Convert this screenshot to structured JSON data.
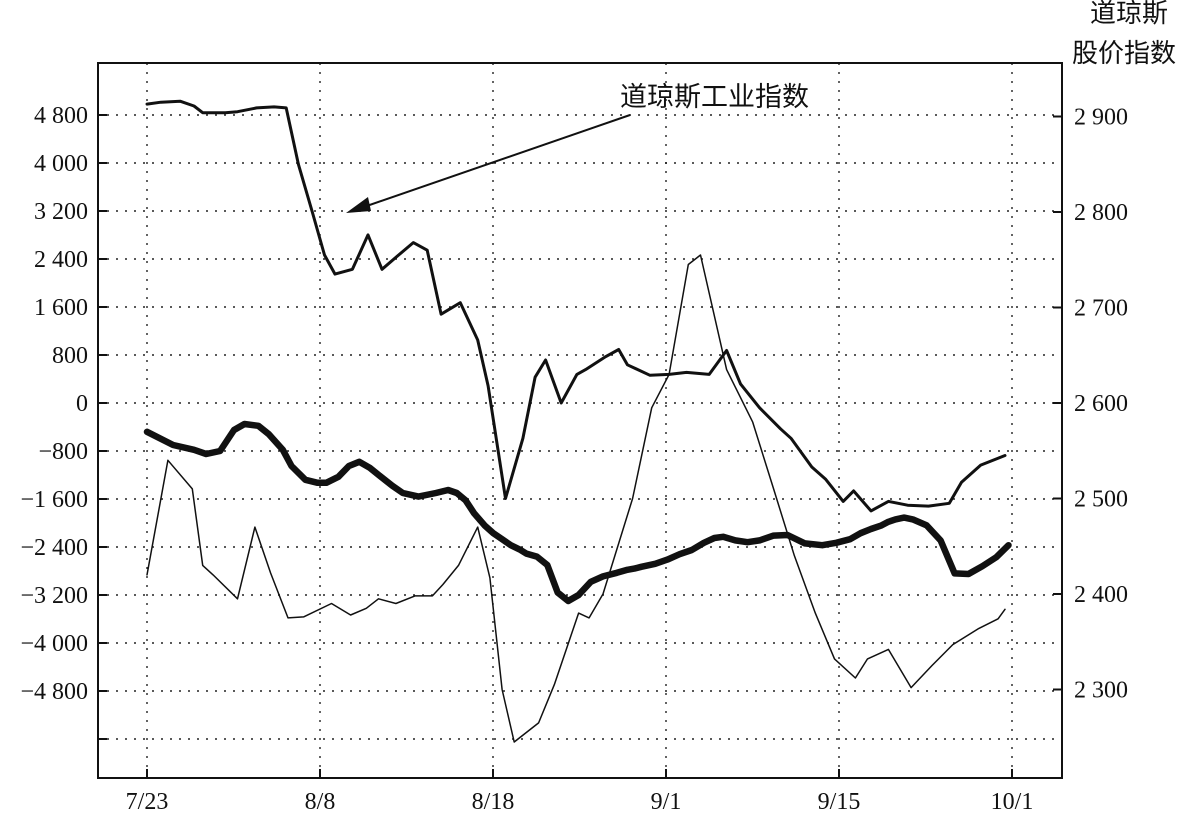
{
  "chart_data": {
    "type": "line",
    "right_axis_title_line1": "道琼斯",
    "right_axis_title_line2": "股价指数",
    "annotation": "道琼斯工业指数",
    "x_tick_labels": [
      "7/23",
      "8/8",
      "8/18",
      "9/1",
      "9/15",
      "10/1"
    ],
    "left_axis": {
      "ticks": [
        4800,
        4000,
        3200,
        2400,
        1600,
        800,
        0,
        -800,
        -1600,
        -2400,
        -3200,
        -4000,
        -4800
      ],
      "tick_labels": [
        "4 800",
        "4 000",
        "3 200",
        "2 400",
        "1 600",
        "800",
        "0",
        "−800",
        "−1 600",
        "−2 400",
        "−3 200",
        "−4 000",
        "−4 800"
      ]
    },
    "right_axis": {
      "ticks": [
        2900,
        2800,
        2700,
        2600,
        2500,
        2400,
        2300
      ],
      "tick_labels": [
        "2 900",
        "2 800",
        "2 700",
        "2 600",
        "2 500",
        "2 400",
        "2 300"
      ]
    },
    "x_range": [
      0,
      49.7
    ],
    "series": [
      {
        "axis": "right",
        "style": "medium",
        "x": [
          0,
          0.8,
          1.9,
          2.7,
          3.2,
          4.5,
          5.2,
          6.3,
          7.3,
          8.0,
          8.7,
          9.5,
          10.2,
          10.8,
          11.8,
          12.7,
          13.5,
          14.4,
          15.3,
          16.1,
          16.9,
          18.0,
          19.0,
          19.6,
          20.6,
          21.6,
          22.3,
          22.9,
          23.8,
          24.7,
          25.2,
          26.3,
          27.1,
          27.6,
          28.9,
          30.0,
          31.0,
          32.3,
          33.3,
          34.1,
          35.2,
          36.4,
          37.0,
          38.2,
          39.0,
          40.0,
          40.6,
          41.6,
          42.6,
          43.7,
          44.9,
          46.1,
          46.8,
          47.9,
          49.3
        ],
        "y": [
          2913,
          2915,
          2916,
          2911,
          2904,
          2904,
          2905,
          2909,
          2910,
          2909,
          2850,
          2800,
          2755,
          2735,
          2740,
          2776,
          2740,
          2754,
          2768,
          2760,
          2693,
          2705,
          2666,
          2618,
          2500,
          2563,
          2627,
          2645,
          2600,
          2630,
          2635,
          2648,
          2656,
          2640,
          2629,
          2630,
          2632,
          2630,
          2655,
          2620,
          2595,
          2573,
          2563,
          2533,
          2520,
          2497,
          2508,
          2487,
          2497,
          2493,
          2492,
          2495,
          2517,
          2535,
          2545
        ]
      },
      {
        "axis": "right",
        "style": "thin",
        "x": [
          0,
          1.2,
          2.6,
          3.2,
          3.8,
          5.2,
          6.2,
          7.1,
          8.1,
          9.0,
          10.6,
          11.7,
          12.6,
          13.3,
          14.3,
          15.4,
          16.4,
          17.0,
          17.9,
          19.0,
          19.7,
          20.4,
          21.1,
          22.5,
          23.4,
          24.8,
          25.4,
          26.2,
          27.9,
          29.0,
          30.0,
          31.1,
          31.8,
          33.3,
          34.8,
          36.0,
          37.2,
          38.4,
          39.5,
          40.7,
          41.4,
          42.6,
          43.9,
          45.1,
          46.3,
          47.8,
          48.9,
          49.3
        ],
        "y": [
          2420,
          2540,
          2510,
          2430,
          2420,
          2395,
          2470,
          2422,
          2375,
          2376,
          2390,
          2378,
          2385,
          2395,
          2390,
          2398,
          2398,
          2410,
          2430,
          2470,
          2417,
          2300,
          2245,
          2265,
          2305,
          2380,
          2375,
          2400,
          2500,
          2595,
          2630,
          2745,
          2755,
          2635,
          2580,
          2510,
          2440,
          2380,
          2332,
          2312,
          2332,
          2342,
          2302,
          2325,
          2347,
          2364,
          2374,
          2384
        ]
      },
      {
        "axis": "left",
        "style": "bold",
        "x": [
          0,
          1.5,
          2.7,
          3.4,
          4.2,
          5.0,
          5.6,
          6.4,
          7.0,
          7.8,
          8.3,
          9.1,
          9.8,
          10.3,
          11.0,
          11.6,
          12.2,
          12.8,
          13.4,
          14.1,
          14.7,
          15.6,
          16.6,
          17.3,
          17.8,
          18.3,
          18.8,
          19.4,
          19.9,
          20.4,
          20.9,
          21.4,
          21.8,
          22.4,
          23.0,
          23.6,
          24.2,
          24.8,
          25.5,
          26.2,
          27.0,
          27.6,
          28.0,
          28.4,
          29.2,
          29.9,
          30.6,
          31.3,
          32.0,
          32.6,
          33.1,
          33.8,
          34.5,
          35.2,
          36.0,
          36.8,
          37.8,
          38.8,
          39.6,
          40.4,
          41.0,
          41.6,
          42.2,
          42.6,
          43.0,
          43.5,
          44.0,
          44.8,
          45.6,
          46.4,
          47.2,
          48.0,
          48.8,
          49.5
        ],
        "y": [
          -480,
          -700,
          -780,
          -850,
          -800,
          -450,
          -350,
          -380,
          -520,
          -780,
          -1050,
          -1280,
          -1330,
          -1330,
          -1230,
          -1050,
          -980,
          -1080,
          -1220,
          -1380,
          -1500,
          -1560,
          -1500,
          -1450,
          -1500,
          -1620,
          -1840,
          -2040,
          -2170,
          -2270,
          -2370,
          -2440,
          -2510,
          -2560,
          -2700,
          -3160,
          -3300,
          -3200,
          -2980,
          -2890,
          -2830,
          -2780,
          -2760,
          -2730,
          -2680,
          -2610,
          -2520,
          -2450,
          -2330,
          -2250,
          -2230,
          -2290,
          -2320,
          -2290,
          -2210,
          -2200,
          -2340,
          -2370,
          -2330,
          -2270,
          -2170,
          -2100,
          -2040,
          -1980,
          -1940,
          -1910,
          -1940,
          -2040,
          -2290,
          -2840,
          -2850,
          -2720,
          -2570,
          -2370
        ]
      }
    ]
  }
}
